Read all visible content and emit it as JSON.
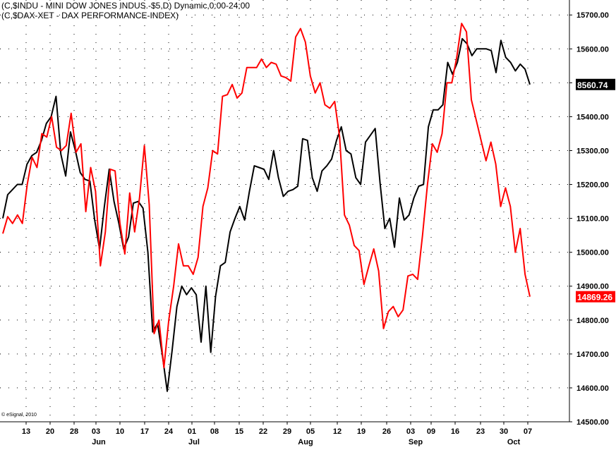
{
  "legend": {
    "line1": "(C,$INDU - MINI DOW JONES INDUS.-$5,D) Dynamic,0:00-24:00",
    "line2": "(C,$DAX-XET - DAX PERFORMANCE-INDEX)"
  },
  "copyright": "© eSignal, 2010",
  "colors": {
    "dow": "#000000",
    "dax": "#ff0000",
    "grid": "#000000",
    "background": "#ffffff"
  },
  "chart_data": {
    "type": "line",
    "title": "",
    "ylim": [
      14500,
      15740
    ],
    "y_ticks": [
      "15700.00",
      "15600.00",
      "15500.00",
      "15400.00",
      "15300.00",
      "15200.00",
      "15100.00",
      "15000.00",
      "14900.00",
      "14800.00",
      "14700.00",
      "14600.00",
      "14500.00"
    ],
    "x_ticks": [
      "13",
      "20",
      "28",
      "03",
      "10",
      "17",
      "24",
      "01",
      "08",
      "15",
      "22",
      "29",
      "05",
      "12",
      "19",
      "26",
      "03",
      "09",
      "16",
      "23",
      "30",
      "07"
    ],
    "months": [
      "Jun",
      "Jul",
      "Aug",
      "Sep",
      "Oct"
    ],
    "last_values": [
      {
        "series": "dow",
        "label": "8560.74"
      },
      {
        "series": "dax",
        "label": "14869.26"
      }
    ],
    "grid": true,
    "series": [
      {
        "name": "(C,$INDU - MINI DOW JONES INDUS.-$5,D) Dynamic,0:00-24:00",
        "key": "dow",
        "values": [
          15100,
          15170,
          15185,
          15200,
          15200,
          15260,
          15285,
          15295,
          15330,
          15380,
          15400,
          15460,
          15290,
          15225,
          15355,
          15300,
          15235,
          15215,
          15210,
          15095,
          15010,
          15135,
          15245,
          15150,
          15085,
          15010,
          15045,
          15145,
          15150,
          15130,
          15000,
          14765,
          14790,
          14695,
          14590,
          14710,
          14840,
          14900,
          14875,
          14895,
          14875,
          14735,
          14900,
          14705,
          14870,
          14960,
          14970,
          15060,
          15100,
          15135,
          15095,
          15180,
          15255,
          15250,
          15245,
          15215,
          15300,
          15220,
          15165,
          15180,
          15185,
          15195,
          15335,
          15330,
          15220,
          15180,
          15240,
          15255,
          15275,
          15330,
          15370,
          15300,
          15290,
          15220,
          15200,
          15325,
          15345,
          15365,
          15205,
          15070,
          15100,
          15015,
          15160,
          15095,
          15110,
          15160,
          15195,
          15200,
          15370,
          15420,
          15420,
          15435,
          15560,
          15525,
          15560,
          15630,
          15615,
          15580,
          15600,
          15600,
          15600,
          15595,
          15530,
          15625,
          15575,
          15560,
          15535,
          15555,
          15540,
          15495
        ]
      },
      {
        "name": "(C,$DAX-XET - DAX PERFORMANCE-INDEX)",
        "key": "dax",
        "values": [
          15055,
          15105,
          15085,
          15110,
          15085,
          15200,
          15280,
          15250,
          15350,
          15340,
          15400,
          15310,
          15300,
          15315,
          15410,
          15295,
          15320,
          15120,
          15250,
          15180,
          14960,
          15060,
          15245,
          15240,
          15085,
          14995,
          15175,
          15060,
          15160,
          15315,
          15140,
          14760,
          14800,
          14660,
          14800,
          14900,
          15025,
          14960,
          14960,
          14935,
          14985,
          15135,
          15190,
          15300,
          15290,
          15460,
          15465,
          15495,
          15455,
          15470,
          15545,
          15545,
          15545,
          15570,
          15545,
          15560,
          15555,
          15520,
          15515,
          15505,
          15635,
          15660,
          15620,
          15520,
          15470,
          15500,
          15435,
          15425,
          15445,
          15340,
          15110,
          15080,
          15020,
          15005,
          14905,
          14960,
          15010,
          14945,
          14775,
          14825,
          14840,
          14810,
          14830,
          14930,
          14935,
          14920,
          15050,
          15200,
          15320,
          15295,
          15350,
          15500,
          15500,
          15575,
          15675,
          15650,
          15450,
          15390,
          15330,
          15270,
          15325,
          15260,
          15135,
          15190,
          15135,
          15000,
          15070,
          14935,
          14869
        ]
      }
    ]
  }
}
